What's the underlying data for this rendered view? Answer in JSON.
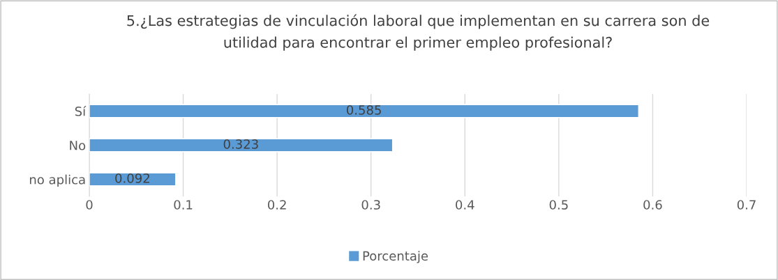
{
  "chart_data": {
    "type": "bar",
    "orientation": "horizontal",
    "title": "5.¿Las estrategias de vinculación laboral que implementan en su carrera son de\nutilidad para encontrar el primer empleo profesional?",
    "categories": [
      "Sí",
      "No",
      "no aplica"
    ],
    "series": [
      {
        "name": "Porcentaje",
        "color": "#5b9bd5",
        "values": [
          0.585,
          0.323,
          0.092
        ]
      }
    ],
    "xlim": [
      0,
      0.7
    ],
    "xticks": [
      0,
      0.1,
      0.2,
      0.3,
      0.4,
      0.5,
      0.6,
      0.7
    ],
    "grid": "x",
    "legend": "bottom",
    "data_labels": true
  }
}
